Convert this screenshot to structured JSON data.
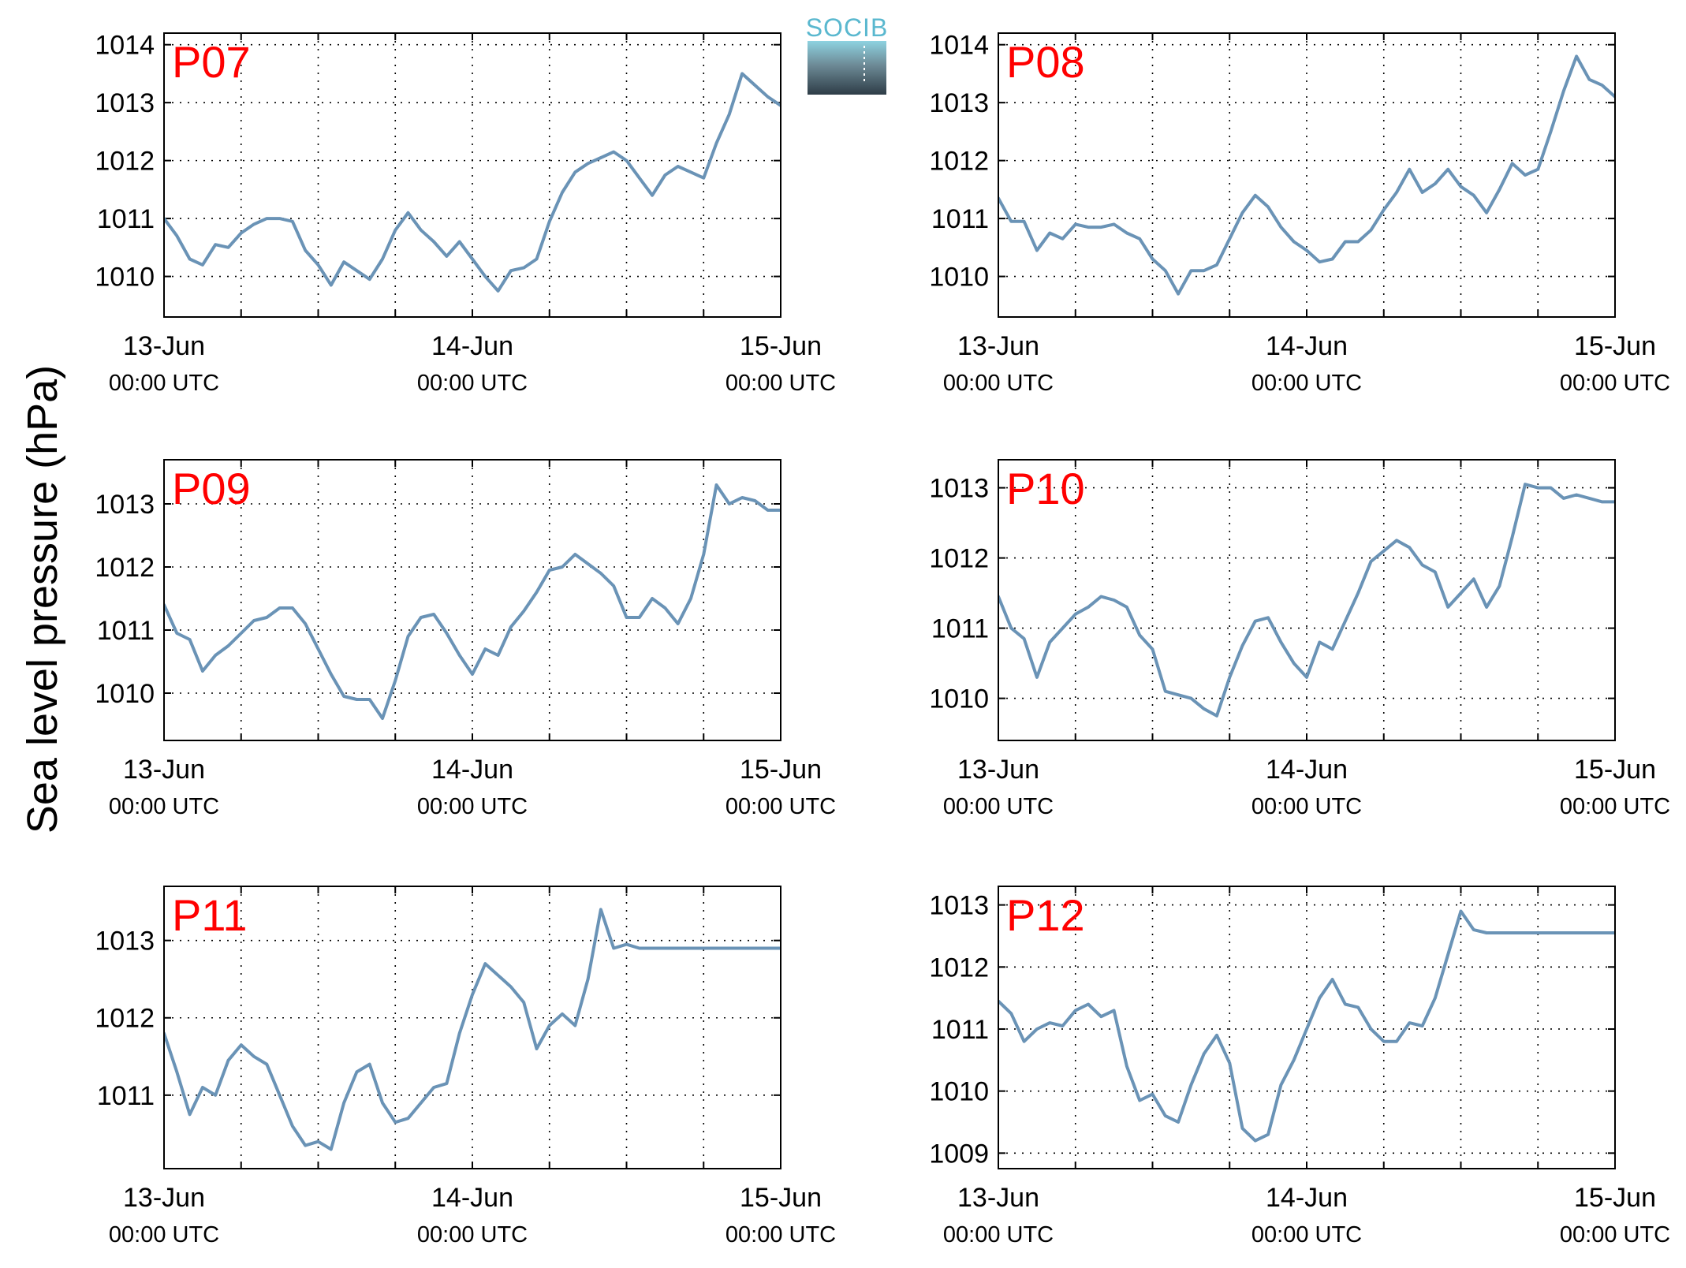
{
  "figure": {
    "ylabel": "Sea level pressure (hPa)",
    "logo_text": "SOCIB"
  },
  "style": {
    "line_color": "#6a93b6",
    "label_color": "#ff0000",
    "grid_color": "#000000"
  },
  "chart_data": [
    {
      "type": "line",
      "title": "P07",
      "x_ticks": [
        {
          "date": "13-Jun",
          "time": "00:00 UTC"
        },
        {
          "date": "14-Jun",
          "time": "00:00 UTC"
        },
        {
          "date": "15-Jun",
          "time": "00:00 UTC"
        }
      ],
      "xlim": [
        0,
        48
      ],
      "ylim": [
        1009.3,
        1014.2
      ],
      "yticks": [
        1010,
        1011,
        1012,
        1013,
        1014
      ],
      "grid": true,
      "x": [
        0,
        1,
        2,
        3,
        4,
        5,
        6,
        7,
        8,
        9,
        10,
        11,
        12,
        13,
        14,
        15,
        16,
        17,
        18,
        19,
        20,
        21,
        22,
        23,
        24,
        25,
        26,
        27,
        28,
        29,
        30,
        31,
        32,
        33,
        34,
        35,
        36,
        37,
        38,
        39,
        40,
        41,
        42,
        43,
        44,
        45,
        46,
        47,
        48
      ],
      "values": [
        1011.0,
        1010.7,
        1010.3,
        1010.2,
        1010.55,
        1010.5,
        1010.75,
        1010.9,
        1011.0,
        1011.0,
        1010.95,
        1010.45,
        1010.2,
        1009.85,
        1010.25,
        1010.1,
        1009.95,
        1010.3,
        1010.8,
        1011.1,
        1010.8,
        1010.6,
        1010.35,
        1010.6,
        1010.3,
        1010.0,
        1009.75,
        1010.1,
        1010.15,
        1010.3,
        1010.95,
        1011.45,
        1011.8,
        1011.95,
        1012.05,
        1012.15,
        1012.0,
        1011.7,
        1011.4,
        1011.75,
        1011.9,
        1011.8,
        1011.7,
        1012.3,
        1012.8,
        1013.5,
        1013.3,
        1013.1,
        1012.95
      ]
    },
    {
      "type": "line",
      "title": "P08",
      "x_ticks": [
        {
          "date": "13-Jun",
          "time": "00:00 UTC"
        },
        {
          "date": "14-Jun",
          "time": "00:00 UTC"
        },
        {
          "date": "15-Jun",
          "time": "00:00 UTC"
        }
      ],
      "xlim": [
        0,
        48
      ],
      "ylim": [
        1009.3,
        1014.2
      ],
      "yticks": [
        1010,
        1011,
        1012,
        1013,
        1014
      ],
      "grid": true,
      "x": [
        0,
        1,
        2,
        3,
        4,
        5,
        6,
        7,
        8,
        9,
        10,
        11,
        12,
        13,
        14,
        15,
        16,
        17,
        18,
        19,
        20,
        21,
        22,
        23,
        24,
        25,
        26,
        27,
        28,
        29,
        30,
        31,
        32,
        33,
        34,
        35,
        36,
        37,
        38,
        39,
        40,
        41,
        42,
        43,
        44,
        45,
        46,
        47,
        48
      ],
      "values": [
        1011.35,
        1010.95,
        1010.95,
        1010.45,
        1010.75,
        1010.65,
        1010.9,
        1010.85,
        1010.85,
        1010.9,
        1010.75,
        1010.65,
        1010.3,
        1010.1,
        1009.7,
        1010.1,
        1010.1,
        1010.2,
        1010.65,
        1011.1,
        1011.4,
        1011.2,
        1010.85,
        1010.6,
        1010.45,
        1010.25,
        1010.3,
        1010.6,
        1010.6,
        1010.8,
        1011.15,
        1011.45,
        1011.85,
        1011.45,
        1011.6,
        1011.85,
        1011.55,
        1011.4,
        1011.1,
        1011.5,
        1011.95,
        1011.75,
        1011.85,
        1012.5,
        1013.2,
        1013.8,
        1013.4,
        1013.3,
        1013.1
      ]
    },
    {
      "type": "line",
      "title": "P09",
      "x_ticks": [
        {
          "date": "13-Jun",
          "time": "00:00 UTC"
        },
        {
          "date": "14-Jun",
          "time": "00:00 UTC"
        },
        {
          "date": "15-Jun",
          "time": "00:00 UTC"
        }
      ],
      "xlim": [
        0,
        48
      ],
      "ylim": [
        1009.25,
        1013.7
      ],
      "yticks": [
        1010,
        1011,
        1012,
        1013
      ],
      "grid": true,
      "x": [
        0,
        1,
        2,
        3,
        4,
        5,
        6,
        7,
        8,
        9,
        10,
        11,
        12,
        13,
        14,
        15,
        16,
        17,
        18,
        19,
        20,
        21,
        22,
        23,
        24,
        25,
        26,
        27,
        28,
        29,
        30,
        31,
        32,
        33,
        34,
        35,
        36,
        37,
        38,
        39,
        40,
        41,
        42,
        43,
        44,
        45,
        46,
        47,
        48
      ],
      "values": [
        1011.4,
        1010.95,
        1010.85,
        1010.35,
        1010.6,
        1010.75,
        1010.95,
        1011.15,
        1011.2,
        1011.35,
        1011.35,
        1011.1,
        1010.7,
        1010.3,
        1009.95,
        1009.9,
        1009.9,
        1009.6,
        1010.2,
        1010.9,
        1011.2,
        1011.25,
        1010.95,
        1010.6,
        1010.3,
        1010.7,
        1010.6,
        1011.05,
        1011.3,
        1011.6,
        1011.95,
        1012.0,
        1012.2,
        1012.05,
        1011.9,
        1011.7,
        1011.2,
        1011.2,
        1011.5,
        1011.35,
        1011.1,
        1011.5,
        1012.2,
        1013.3,
        1013.0,
        1013.1,
        1013.05,
        1012.9,
        1012.9
      ]
    },
    {
      "type": "line",
      "title": "P10",
      "x_ticks": [
        {
          "date": "13-Jun",
          "time": "00:00 UTC"
        },
        {
          "date": "14-Jun",
          "time": "00:00 UTC"
        },
        {
          "date": "15-Jun",
          "time": "00:00 UTC"
        }
      ],
      "xlim": [
        0,
        48
      ],
      "ylim": [
        1009.4,
        1013.4
      ],
      "yticks": [
        1010,
        1011,
        1012,
        1013
      ],
      "grid": true,
      "x": [
        0,
        1,
        2,
        3,
        4,
        5,
        6,
        7,
        8,
        9,
        10,
        11,
        12,
        13,
        14,
        15,
        16,
        17,
        18,
        19,
        20,
        21,
        22,
        23,
        24,
        25,
        26,
        27,
        28,
        29,
        30,
        31,
        32,
        33,
        34,
        35,
        36,
        37,
        38,
        39,
        40,
        41,
        42,
        43,
        44,
        45,
        46,
        47,
        48
      ],
      "values": [
        1011.45,
        1011.0,
        1010.85,
        1010.3,
        1010.8,
        1011.0,
        1011.2,
        1011.3,
        1011.45,
        1011.4,
        1011.3,
        1010.9,
        1010.7,
        1010.1,
        1010.05,
        1010.0,
        1009.85,
        1009.75,
        1010.3,
        1010.75,
        1011.1,
        1011.15,
        1010.8,
        1010.5,
        1010.3,
        1010.8,
        1010.7,
        1011.1,
        1011.5,
        1011.95,
        1012.1,
        1012.25,
        1012.15,
        1011.9,
        1011.8,
        1011.3,
        1011.5,
        1011.7,
        1011.3,
        1011.6,
        1012.3,
        1013.05,
        1013.0,
        1013.0,
        1012.85,
        1012.9,
        1012.85,
        1012.8,
        1012.8
      ]
    },
    {
      "type": "line",
      "title": "P11",
      "x_ticks": [
        {
          "date": "13-Jun",
          "time": "00:00 UTC"
        },
        {
          "date": "14-Jun",
          "time": "00:00 UTC"
        },
        {
          "date": "15-Jun",
          "time": "00:00 UTC"
        }
      ],
      "xlim": [
        0,
        48
      ],
      "ylim": [
        1010.05,
        1013.7
      ],
      "yticks": [
        1011,
        1012,
        1013
      ],
      "grid": true,
      "x": [
        0,
        1,
        2,
        3,
        4,
        5,
        6,
        7,
        8,
        9,
        10,
        11,
        12,
        13,
        14,
        15,
        16,
        17,
        18,
        19,
        20,
        21,
        22,
        23,
        24,
        25,
        26,
        27,
        28,
        29,
        30,
        31,
        32,
        33,
        34,
        35,
        36,
        37,
        38,
        39,
        40,
        41,
        42,
        43,
        44,
        45,
        46,
        47,
        48
      ],
      "values": [
        1011.8,
        1011.3,
        1010.75,
        1011.1,
        1011.0,
        1011.45,
        1011.65,
        1011.5,
        1011.4,
        1011.0,
        1010.6,
        1010.35,
        1010.4,
        1010.3,
        1010.9,
        1011.3,
        1011.4,
        1010.9,
        1010.65,
        1010.7,
        1010.9,
        1011.1,
        1011.15,
        1011.8,
        1012.3,
        1012.7,
        1012.55,
        1012.4,
        1012.2,
        1011.6,
        1011.9,
        1012.05,
        1011.9,
        1012.5,
        1013.4,
        1012.9,
        1012.95,
        1012.9,
        1012.9,
        1012.9,
        1012.9,
        1012.9,
        1012.9,
        1012.9,
        1012.9,
        1012.9,
        1012.9,
        1012.9,
        1012.9
      ]
    },
    {
      "type": "line",
      "title": "P12",
      "x_ticks": [
        {
          "date": "13-Jun",
          "time": "00:00 UTC"
        },
        {
          "date": "14-Jun",
          "time": "00:00 UTC"
        },
        {
          "date": "15-Jun",
          "time": "00:00 UTC"
        }
      ],
      "xlim": [
        0,
        48
      ],
      "ylim": [
        1008.75,
        1013.3
      ],
      "yticks": [
        1009,
        1010,
        1011,
        1012,
        1013
      ],
      "grid": true,
      "x": [
        0,
        1,
        2,
        3,
        4,
        5,
        6,
        7,
        8,
        9,
        10,
        11,
        12,
        13,
        14,
        15,
        16,
        17,
        18,
        19,
        20,
        21,
        22,
        23,
        24,
        25,
        26,
        27,
        28,
        29,
        30,
        31,
        32,
        33,
        34,
        35,
        36,
        37,
        38,
        39,
        40,
        41,
        42,
        43,
        44,
        45,
        46,
        47,
        48
      ],
      "values": [
        1011.45,
        1011.25,
        1010.8,
        1011.0,
        1011.1,
        1011.05,
        1011.3,
        1011.4,
        1011.2,
        1011.3,
        1010.4,
        1009.85,
        1009.95,
        1009.6,
        1009.5,
        1010.1,
        1010.6,
        1010.9,
        1010.45,
        1009.4,
        1009.2,
        1009.3,
        1010.1,
        1010.5,
        1011.0,
        1011.5,
        1011.8,
        1011.4,
        1011.35,
        1011.0,
        1010.8,
        1010.8,
        1011.1,
        1011.05,
        1011.5,
        1012.2,
        1012.9,
        1012.6,
        1012.55,
        1012.55,
        1012.55,
        1012.55,
        1012.55,
        1012.55,
        1012.55,
        1012.55,
        1012.55,
        1012.55,
        1012.55
      ]
    }
  ]
}
